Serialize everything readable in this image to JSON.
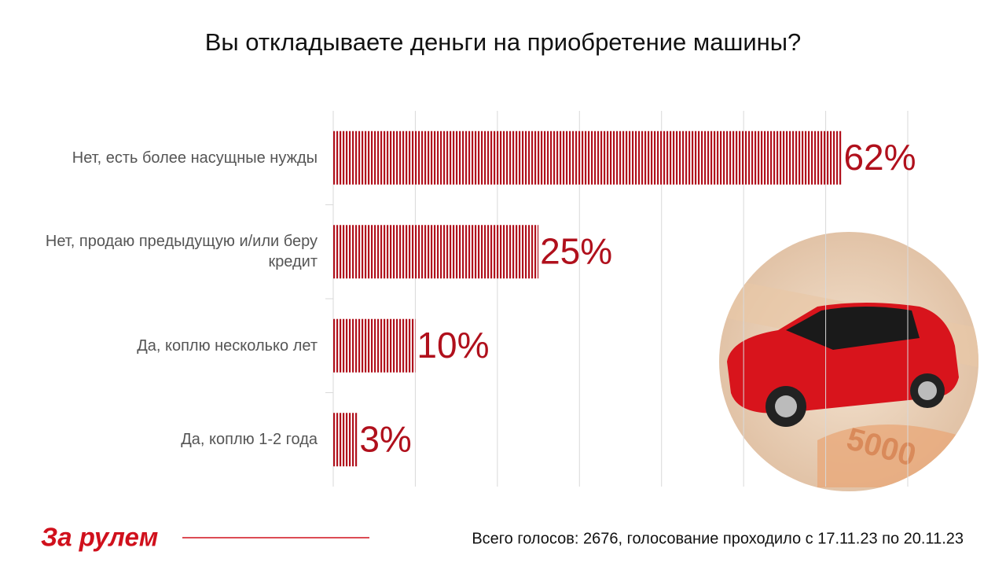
{
  "chart_data": {
    "type": "bar",
    "orientation": "horizontal",
    "title": "Вы откладываете деньги на приобретение машины?",
    "categories": [
      "Нет, есть более насущные нужды",
      "Нет, продаю предыдущую и/или беру кредит",
      "Да, коплю несколько лет",
      "Да, коплю 1-2 года"
    ],
    "values": [
      62,
      25,
      10,
      3
    ],
    "value_labels": [
      "62%",
      "25%",
      "10%",
      "3%"
    ],
    "color": "#b0101c",
    "xlim": [
      0,
      70
    ],
    "xticks": [
      0,
      10,
      20,
      30,
      40,
      50,
      60,
      70
    ],
    "grid": true,
    "footnote": "Всего голосов: 2676, голосование проходило с 17.11.23 по 20.11.23",
    "logo": "За рулем"
  }
}
